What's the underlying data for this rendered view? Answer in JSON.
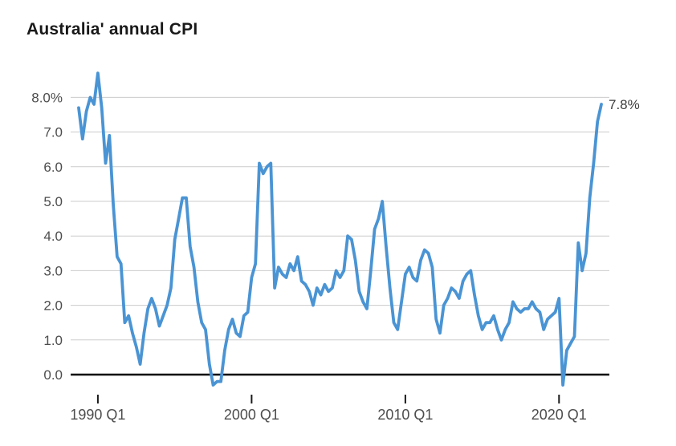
{
  "page": {
    "title": "Australia' annual CPI"
  },
  "colors": {
    "background": "#ffffff",
    "line": "#4a94d4",
    "title_text": "#191919",
    "axis_text": "#4d4d4d",
    "gridline": "#cccccc",
    "zero_line": "#000000",
    "tick": "#1a1a1a",
    "annotation_text": "#3d3d3d"
  },
  "chart_data": {
    "type": "line",
    "title": "Australia' annual CPI",
    "grid": "horizontal",
    "legend": "none",
    "zero_baseline": true,
    "ylim": [
      -0.6,
      8.9
    ],
    "y_ticks": [
      {
        "value": 8,
        "label": "8.0%"
      },
      {
        "value": 7,
        "label": "7.0"
      },
      {
        "value": 6,
        "label": "6.0"
      },
      {
        "value": 5,
        "label": "5.0"
      },
      {
        "value": 4,
        "label": "4.0"
      },
      {
        "value": 3,
        "label": "3.0"
      },
      {
        "value": 2,
        "label": "2.0"
      },
      {
        "value": 1,
        "label": "1.0"
      },
      {
        "value": 0,
        "label": "0.0"
      }
    ],
    "x_ticks": [
      "1990 Q1",
      "2000 Q1",
      "2010 Q1",
      "2020 Q1"
    ],
    "annotation": {
      "label": "7.8%",
      "position": "end-of-line"
    },
    "x": [
      "1988 Q4",
      "1989 Q1",
      "1989 Q2",
      "1989 Q3",
      "1989 Q4",
      "1990 Q1",
      "1990 Q2",
      "1990 Q3",
      "1990 Q4",
      "1991 Q1",
      "1991 Q2",
      "1991 Q3",
      "1991 Q4",
      "1992 Q1",
      "1992 Q2",
      "1992 Q3",
      "1992 Q4",
      "1993 Q1",
      "1993 Q2",
      "1993 Q3",
      "1993 Q4",
      "1994 Q1",
      "1994 Q2",
      "1994 Q3",
      "1994 Q4",
      "1995 Q1",
      "1995 Q2",
      "1995 Q3",
      "1995 Q4",
      "1996 Q1",
      "1996 Q2",
      "1996 Q3",
      "1996 Q4",
      "1997 Q1",
      "1997 Q2",
      "1997 Q3",
      "1997 Q4",
      "1998 Q1",
      "1998 Q2",
      "1998 Q3",
      "1998 Q4",
      "1999 Q1",
      "1999 Q2",
      "1999 Q3",
      "1999 Q4",
      "2000 Q1",
      "2000 Q2",
      "2000 Q3",
      "2000 Q4",
      "2001 Q1",
      "2001 Q2",
      "2001 Q3",
      "2001 Q4",
      "2002 Q1",
      "2002 Q2",
      "2002 Q3",
      "2002 Q4",
      "2003 Q1",
      "2003 Q2",
      "2003 Q3",
      "2003 Q4",
      "2004 Q1",
      "2004 Q2",
      "2004 Q3",
      "2004 Q4",
      "2005 Q1",
      "2005 Q2",
      "2005 Q3",
      "2005 Q4",
      "2006 Q1",
      "2006 Q2",
      "2006 Q3",
      "2006 Q4",
      "2007 Q1",
      "2007 Q2",
      "2007 Q3",
      "2007 Q4",
      "2008 Q1",
      "2008 Q2",
      "2008 Q3",
      "2008 Q4",
      "2009 Q1",
      "2009 Q2",
      "2009 Q3",
      "2009 Q4",
      "2010 Q1",
      "2010 Q2",
      "2010 Q3",
      "2010 Q4",
      "2011 Q1",
      "2011 Q2",
      "2011 Q3",
      "2011 Q4",
      "2012 Q1",
      "2012 Q2",
      "2012 Q3",
      "2012 Q4",
      "2013 Q1",
      "2013 Q2",
      "2013 Q3",
      "2013 Q4",
      "2014 Q1",
      "2014 Q2",
      "2014 Q3",
      "2014 Q4",
      "2015 Q1",
      "2015 Q2",
      "2015 Q3",
      "2015 Q4",
      "2016 Q1",
      "2016 Q2",
      "2016 Q3",
      "2016 Q4",
      "2017 Q1",
      "2017 Q2",
      "2017 Q3",
      "2017 Q4",
      "2018 Q1",
      "2018 Q2",
      "2018 Q3",
      "2018 Q4",
      "2019 Q1",
      "2019 Q2",
      "2019 Q3",
      "2019 Q4",
      "2020 Q1",
      "2020 Q2",
      "2020 Q3",
      "2020 Q4",
      "2021 Q1",
      "2021 Q2",
      "2021 Q3",
      "2021 Q4",
      "2022 Q1",
      "2022 Q2",
      "2022 Q3",
      "2022 Q4"
    ],
    "values": [
      7.7,
      6.8,
      7.6,
      8.0,
      7.8,
      8.7,
      7.7,
      6.1,
      6.9,
      4.9,
      3.4,
      3.2,
      1.5,
      1.7,
      1.2,
      0.8,
      0.3,
      1.2,
      1.9,
      2.2,
      1.9,
      1.4,
      1.7,
      2.0,
      2.5,
      3.9,
      4.5,
      5.1,
      5.1,
      3.7,
      3.1,
      2.1,
      1.5,
      1.3,
      0.3,
      -0.3,
      -0.2,
      -0.2,
      0.7,
      1.3,
      1.6,
      1.2,
      1.1,
      1.7,
      1.8,
      2.8,
      3.2,
      6.1,
      5.8,
      6.0,
      6.1,
      2.5,
      3.1,
      2.9,
      2.8,
      3.2,
      3.0,
      3.4,
      2.7,
      2.6,
      2.4,
      2.0,
      2.5,
      2.3,
      2.6,
      2.4,
      2.5,
      3.0,
      2.8,
      3.0,
      4.0,
      3.9,
      3.3,
      2.4,
      2.1,
      1.9,
      3.0,
      4.2,
      4.5,
      5.0,
      3.7,
      2.5,
      1.5,
      1.3,
      2.1,
      2.9,
      3.1,
      2.8,
      2.7,
      3.3,
      3.6,
      3.5,
      3.1,
      1.6,
      1.2,
      2.0,
      2.2,
      2.5,
      2.4,
      2.2,
      2.7,
      2.9,
      3.0,
      2.3,
      1.7,
      1.3,
      1.5,
      1.5,
      1.7,
      1.3,
      1.0,
      1.3,
      1.5,
      2.1,
      1.9,
      1.8,
      1.9,
      1.9,
      2.1,
      1.9,
      1.8,
      1.3,
      1.6,
      1.7,
      1.8,
      2.2,
      -0.3,
      0.7,
      0.9,
      1.1,
      3.8,
      3.0,
      3.5,
      5.1,
      6.1,
      7.3,
      7.8
    ]
  }
}
